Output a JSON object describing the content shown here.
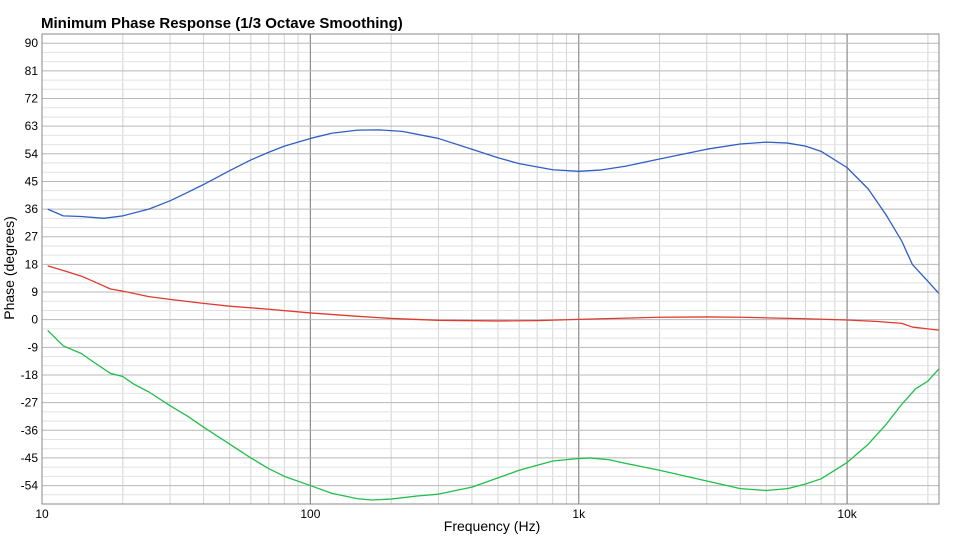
{
  "chart_data": {
    "type": "line",
    "title": "Minimum Phase Response (1/3 Octave Smoothing)",
    "xlabel": "Frequency (Hz)",
    "ylabel": "Phase (degrees)",
    "x_scale": "log",
    "xlim": [
      10,
      22000
    ],
    "ylim": [
      -60,
      93
    ],
    "grid": true,
    "x_ticks": [
      {
        "value": 10,
        "label": "10"
      },
      {
        "value": 100,
        "label": "100"
      },
      {
        "value": 1000,
        "label": "1k"
      },
      {
        "value": 10000,
        "label": "10k"
      }
    ],
    "y_ticks": [
      90,
      81,
      72,
      63,
      54,
      45,
      36,
      27,
      18,
      9,
      0,
      -9,
      -18,
      -27,
      -36,
      -45,
      -54
    ],
    "series": [
      {
        "color": "#2f5fc4",
        "points": [
          [
            10.5,
            36
          ],
          [
            12,
            33.8
          ],
          [
            14,
            33.6
          ],
          [
            17,
            33
          ],
          [
            20,
            33.8
          ],
          [
            25,
            36
          ],
          [
            30,
            38.7
          ],
          [
            35,
            41.5
          ],
          [
            40,
            44
          ],
          [
            50,
            48.5
          ],
          [
            60,
            52
          ],
          [
            70,
            54.5
          ],
          [
            80,
            56.5
          ],
          [
            100,
            59
          ],
          [
            120,
            60.7
          ],
          [
            150,
            61.7
          ],
          [
            180,
            61.8
          ],
          [
            220,
            61.3
          ],
          [
            300,
            59
          ],
          [
            400,
            55.5
          ],
          [
            500,
            52.7
          ],
          [
            600,
            50.8
          ],
          [
            800,
            48.8
          ],
          [
            1000,
            48.3
          ],
          [
            1200,
            48.7
          ],
          [
            1500,
            50
          ],
          [
            2000,
            52.3
          ],
          [
            3000,
            55.5
          ],
          [
            4000,
            57.2
          ],
          [
            5000,
            57.8
          ],
          [
            6000,
            57.5
          ],
          [
            7000,
            56.5
          ],
          [
            8000,
            54.8
          ],
          [
            10000,
            49.5
          ],
          [
            12000,
            42.5
          ],
          [
            14000,
            34
          ],
          [
            16000,
            25.5
          ],
          [
            17500,
            18
          ],
          [
            20000,
            12.5
          ],
          [
            22000,
            8.5
          ]
        ]
      },
      {
        "color": "#e03a2e",
        "points": [
          [
            10.5,
            17.5
          ],
          [
            12,
            16
          ],
          [
            14,
            14.2
          ],
          [
            16,
            12
          ],
          [
            18,
            10
          ],
          [
            20,
            9.3
          ],
          [
            25,
            7.5
          ],
          [
            30,
            6.6
          ],
          [
            40,
            5.3
          ],
          [
            50,
            4.4
          ],
          [
            70,
            3.4
          ],
          [
            100,
            2.2
          ],
          [
            150,
            1.1
          ],
          [
            200,
            0.4
          ],
          [
            300,
            -0.2
          ],
          [
            500,
            -0.4
          ],
          [
            700,
            -0.3
          ],
          [
            1000,
            0.1
          ],
          [
            1500,
            0.5
          ],
          [
            2000,
            0.8
          ],
          [
            3000,
            0.9
          ],
          [
            4000,
            0.8
          ],
          [
            5000,
            0.6
          ],
          [
            7000,
            0.3
          ],
          [
            10000,
            -0.1
          ],
          [
            13000,
            -0.6
          ],
          [
            16000,
            -1.2
          ],
          [
            17500,
            -2.4
          ],
          [
            20000,
            -3
          ],
          [
            22000,
            -3.4
          ]
        ]
      },
      {
        "color": "#1fbf49",
        "points": [
          [
            10.5,
            -3.5
          ],
          [
            12,
            -8.5
          ],
          [
            14,
            -11
          ],
          [
            16,
            -14.5
          ],
          [
            18,
            -17.5
          ],
          [
            20,
            -18.5
          ],
          [
            22,
            -21
          ],
          [
            25,
            -23.5
          ],
          [
            30,
            -28
          ],
          [
            35,
            -31.5
          ],
          [
            40,
            -35
          ],
          [
            50,
            -40.5
          ],
          [
            60,
            -45
          ],
          [
            70,
            -48.5
          ],
          [
            80,
            -51
          ],
          [
            100,
            -54
          ],
          [
            120,
            -56.5
          ],
          [
            150,
            -58.3
          ],
          [
            170,
            -58.7
          ],
          [
            200,
            -58.4
          ],
          [
            250,
            -57.4
          ],
          [
            300,
            -56.8
          ],
          [
            400,
            -54.5
          ],
          [
            500,
            -51.5
          ],
          [
            600,
            -49
          ],
          [
            800,
            -46
          ],
          [
            1000,
            -45.2
          ],
          [
            1100,
            -45
          ],
          [
            1300,
            -45.6
          ],
          [
            1500,
            -46.8
          ],
          [
            2000,
            -49
          ],
          [
            3000,
            -52.5
          ],
          [
            4000,
            -55
          ],
          [
            5000,
            -55.6
          ],
          [
            6000,
            -55
          ],
          [
            7000,
            -53.5
          ],
          [
            8000,
            -51.8
          ],
          [
            10000,
            -46.5
          ],
          [
            12000,
            -40.5
          ],
          [
            14000,
            -34
          ],
          [
            16000,
            -27.5
          ],
          [
            18000,
            -22.5
          ],
          [
            20000,
            -20
          ],
          [
            22000,
            -16
          ]
        ]
      }
    ]
  }
}
